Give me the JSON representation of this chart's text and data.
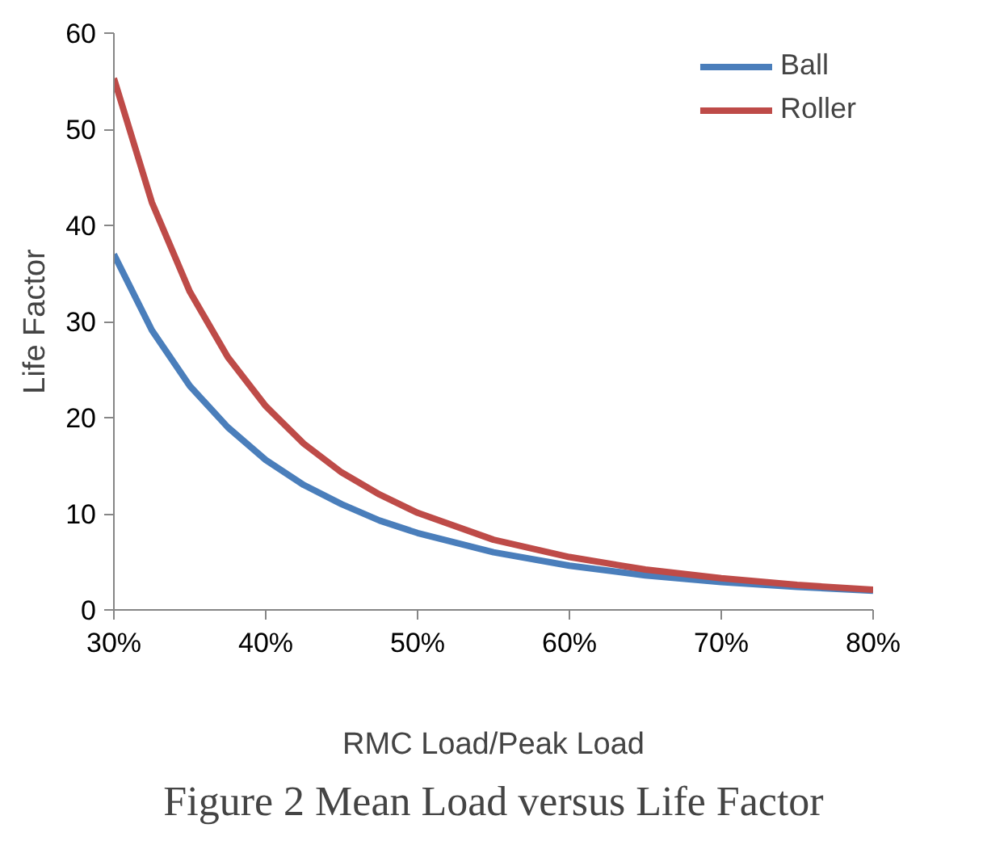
{
  "chart_data": {
    "type": "line",
    "xlabel": "RMC Load/Peak Load",
    "ylabel": "Life Factor",
    "x": [
      0.3,
      0.325,
      0.35,
      0.375,
      0.4,
      0.425,
      0.45,
      0.475,
      0.5,
      0.55,
      0.6,
      0.65,
      0.7,
      0.75,
      0.8
    ],
    "series": [
      {
        "name": "Ball",
        "color": "#4a7ebb",
        "values": [
          37.0,
          29.1,
          23.3,
          19.0,
          15.6,
          13.0,
          11.0,
          9.3,
          8.0,
          6.0,
          4.6,
          3.6,
          2.9,
          2.4,
          2.0
        ]
      },
      {
        "name": "Roller",
        "color": "#be4b48",
        "values": [
          55.3,
          42.4,
          33.1,
          26.3,
          21.2,
          17.3,
          14.3,
          12.0,
          10.1,
          7.3,
          5.5,
          4.2,
          3.3,
          2.6,
          2.1
        ]
      }
    ],
    "xlim": [
      0.3,
      0.8
    ],
    "ylim": [
      0,
      60
    ],
    "xticks": [
      {
        "value": 0.3,
        "label": "30%"
      },
      {
        "value": 0.4,
        "label": "40%"
      },
      {
        "value": 0.5,
        "label": "50%"
      },
      {
        "value": 0.6,
        "label": "60%"
      },
      {
        "value": 0.7,
        "label": "70%"
      },
      {
        "value": 0.8,
        "label": "80%"
      }
    ],
    "yticks": [
      0,
      10,
      20,
      30,
      40,
      50,
      60
    ],
    "grid": false,
    "legend": "top right",
    "marker": "none",
    "line_style": "solid",
    "annotations": [
      "Figure 2 Mean Load versus Life Factor"
    ]
  }
}
